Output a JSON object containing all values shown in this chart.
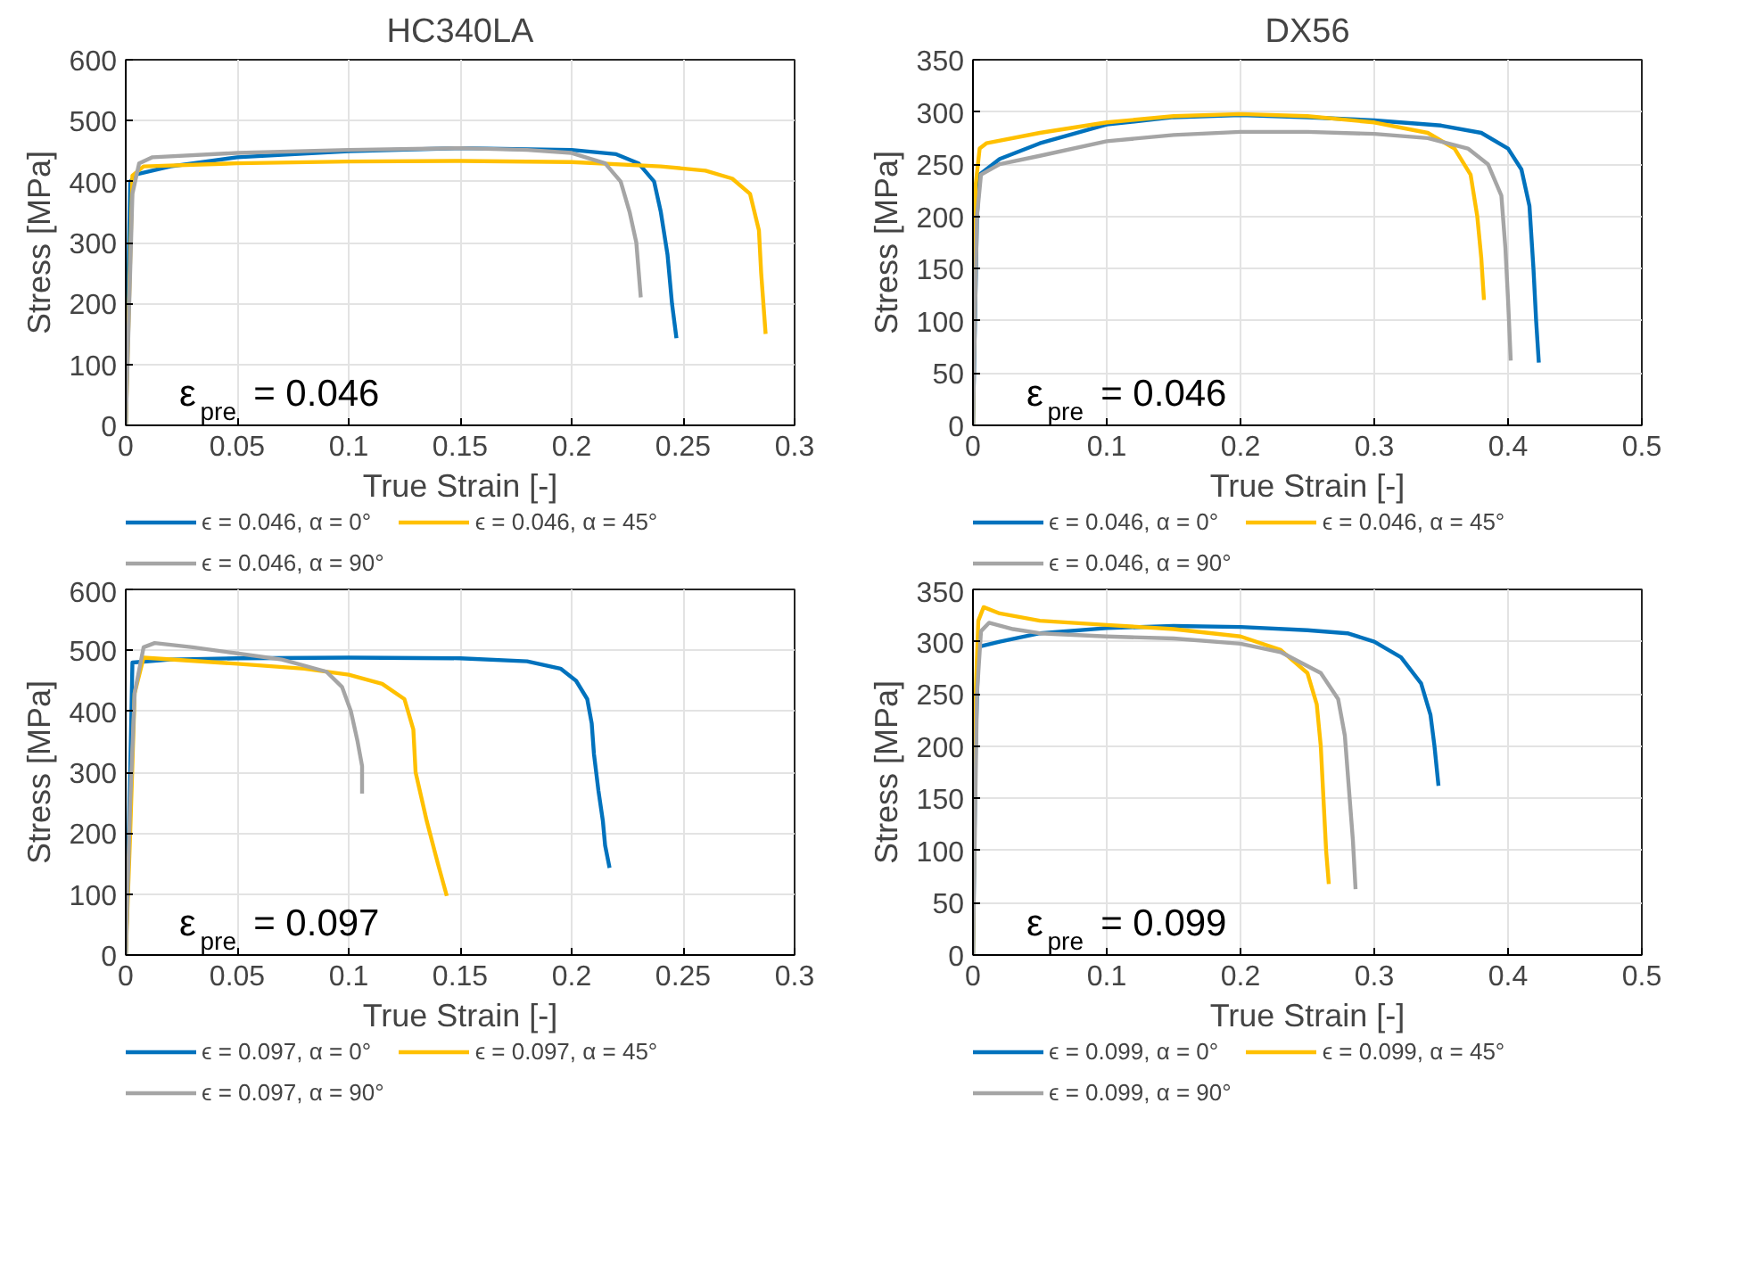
{
  "chart_data": [
    {
      "type": "line",
      "title": "HC340LA",
      "xlabel": "True Strain [-]",
      "ylabel": "Stress [MPa]",
      "annotations": [
        "ε$_{pre}$ = 0.046"
      ],
      "xlim": [
        0,
        0.3
      ],
      "ylim": [
        0,
        600
      ],
      "xticks": [
        0,
        0.05,
        0.1,
        0.15,
        0.2,
        0.25,
        0.3
      ],
      "yticks": [
        0,
        100,
        200,
        300,
        400,
        500,
        600
      ],
      "grid": true,
      "legend": "bottom",
      "line_style": "solid",
      "series": [
        {
          "name": "ϵ = 0.046, α = 0°",
          "color": "#0072bd",
          "x": [
            0,
            0.002,
            0.005,
            0.02,
            0.05,
            0.1,
            0.15,
            0.2,
            0.22,
            0.23,
            0.237,
            0.24,
            0.243,
            0.245,
            0.247
          ],
          "values": [
            0,
            400,
            412,
            425,
            440,
            450,
            455,
            452,
            445,
            430,
            400,
            350,
            280,
            200,
            143
          ]
        },
        {
          "name": "ϵ = 0.046, α = 45°",
          "color": "#ffc000",
          "x": [
            0,
            0.003,
            0.008,
            0.05,
            0.1,
            0.15,
            0.2,
            0.24,
            0.26,
            0.272,
            0.28,
            0.284,
            0.285,
            0.287
          ],
          "values": [
            0,
            410,
            425,
            430,
            433,
            434,
            432,
            425,
            418,
            405,
            380,
            320,
            250,
            150
          ]
        },
        {
          "name": "ϵ = 0.046, α = 90°",
          "color": "#a5a5a5",
          "x": [
            0,
            0.003,
            0.006,
            0.012,
            0.05,
            0.1,
            0.15,
            0.18,
            0.2,
            0.215,
            0.222,
            0.226,
            0.229,
            0.231
          ],
          "values": [
            0,
            380,
            430,
            440,
            447,
            452,
            455,
            452,
            447,
            430,
            400,
            350,
            300,
            210
          ]
        }
      ]
    },
    {
      "type": "line",
      "title": "DX56",
      "xlabel": "True Strain [-]",
      "ylabel": "Stress [MPa]",
      "annotations": [
        "ε$_{pre}$ = 0.046"
      ],
      "xlim": [
        0,
        0.5
      ],
      "ylim": [
        0,
        350
      ],
      "xticks": [
        0,
        0.1,
        0.2,
        0.3,
        0.4,
        0.5
      ],
      "yticks": [
        0,
        50,
        100,
        150,
        200,
        250,
        300,
        350
      ],
      "grid": true,
      "legend": "bottom",
      "line_style": "solid",
      "series": [
        {
          "name": "ϵ = 0.046, α = 0°",
          "color": "#0072bd",
          "x": [
            0,
            0.003,
            0.005,
            0.02,
            0.05,
            0.1,
            0.15,
            0.2,
            0.25,
            0.3,
            0.35,
            0.38,
            0.4,
            0.41,
            0.416,
            0.419,
            0.421,
            0.423
          ],
          "values": [
            0,
            200,
            240,
            255,
            270,
            288,
            295,
            297,
            295,
            292,
            287,
            280,
            265,
            245,
            210,
            150,
            100,
            60
          ]
        },
        {
          "name": "ϵ = 0.046, α = 45°",
          "color": "#ffc000",
          "x": [
            0,
            0.002,
            0.005,
            0.01,
            0.05,
            0.1,
            0.15,
            0.2,
            0.25,
            0.3,
            0.34,
            0.36,
            0.372,
            0.377,
            0.38,
            0.382
          ],
          "values": [
            0,
            230,
            265,
            270,
            280,
            290,
            296,
            298,
            296,
            290,
            280,
            265,
            240,
            200,
            160,
            120
          ]
        },
        {
          "name": "ϵ = 0.046, α = 90°",
          "color": "#a5a5a5",
          "x": [
            0,
            0.003,
            0.006,
            0.02,
            0.05,
            0.1,
            0.15,
            0.2,
            0.25,
            0.3,
            0.34,
            0.37,
            0.385,
            0.395,
            0.398,
            0.4,
            0.402
          ],
          "values": [
            0,
            200,
            240,
            250,
            258,
            272,
            278,
            281,
            281,
            279,
            275,
            265,
            250,
            220,
            170,
            120,
            62
          ]
        }
      ]
    },
    {
      "type": "line",
      "xlabel": "True Strain [-]",
      "ylabel": "Stress [MPa]",
      "annotations": [
        "ε$_{pre}$ = 0.097"
      ],
      "xlim": [
        0,
        0.3
      ],
      "ylim": [
        0,
        600
      ],
      "xticks": [
        0,
        0.05,
        0.1,
        0.15,
        0.2,
        0.25,
        0.3
      ],
      "yticks": [
        0,
        100,
        200,
        300,
        400,
        500,
        600
      ],
      "grid": true,
      "legend": "bottom",
      "line_style": "solid",
      "series": [
        {
          "name": "ϵ = 0.097, α = 0°",
          "color": "#0072bd",
          "x": [
            0,
            0.002,
            0.003,
            0.02,
            0.05,
            0.1,
            0.15,
            0.18,
            0.195,
            0.202,
            0.207,
            0.209,
            0.21,
            0.212,
            0.214,
            0.215,
            0.217
          ],
          "values": [
            0,
            300,
            480,
            485,
            487,
            488,
            487,
            482,
            470,
            450,
            420,
            380,
            330,
            270,
            220,
            180,
            143
          ]
        },
        {
          "name": "ϵ = 0.097, α = 45°",
          "color": "#ffc000",
          "x": [
            0,
            0.002,
            0.004,
            0.008,
            0.05,
            0.08,
            0.1,
            0.115,
            0.125,
            0.129,
            0.13,
            0.135,
            0.14,
            0.144
          ],
          "values": [
            0,
            200,
            430,
            488,
            478,
            470,
            460,
            445,
            420,
            370,
            300,
            220,
            150,
            97
          ]
        },
        {
          "name": "ϵ = 0.097, α = 90°",
          "color": "#a5a5a5",
          "x": [
            0,
            0.002,
            0.004,
            0.008,
            0.013,
            0.03,
            0.05,
            0.07,
            0.09,
            0.097,
            0.101,
            0.104,
            0.106,
            0.106
          ],
          "values": [
            0,
            250,
            430,
            505,
            512,
            505,
            495,
            485,
            465,
            440,
            400,
            350,
            310,
            265
          ]
        }
      ]
    },
    {
      "type": "line",
      "xlabel": "True Strain [-]",
      "ylabel": "Stress [MPa]",
      "annotations": [
        "ε$_{pre}$ = 0.099"
      ],
      "xlim": [
        0,
        0.5
      ],
      "ylim": [
        0,
        350
      ],
      "xticks": [
        0,
        0.1,
        0.2,
        0.3,
        0.4,
        0.5
      ],
      "yticks": [
        0,
        50,
        100,
        150,
        200,
        250,
        300,
        350
      ],
      "grid": true,
      "legend": "bottom",
      "line_style": "solid",
      "series": [
        {
          "name": "ϵ = 0.099, α = 0°",
          "color": "#0072bd",
          "x": [
            0,
            0.002,
            0.004,
            0.02,
            0.05,
            0.1,
            0.15,
            0.2,
            0.25,
            0.28,
            0.3,
            0.32,
            0.335,
            0.342,
            0.345,
            0.348
          ],
          "values": [
            0,
            200,
            295,
            300,
            308,
            313,
            315,
            314,
            311,
            308,
            300,
            285,
            260,
            230,
            200,
            162
          ]
        },
        {
          "name": "ϵ = 0.099, α = 45°",
          "color": "#ffc000",
          "x": [
            0,
            0.002,
            0.004,
            0.008,
            0.02,
            0.05,
            0.1,
            0.15,
            0.2,
            0.23,
            0.25,
            0.257,
            0.26,
            0.262,
            0.264,
            0.266
          ],
          "values": [
            0,
            250,
            320,
            333,
            327,
            320,
            316,
            312,
            305,
            292,
            270,
            240,
            200,
            150,
            100,
            68
          ]
        },
        {
          "name": "ϵ = 0.099, α = 90°",
          "color": "#a5a5a5",
          "x": [
            0,
            0.003,
            0.006,
            0.012,
            0.03,
            0.05,
            0.1,
            0.15,
            0.2,
            0.23,
            0.26,
            0.273,
            0.278,
            0.281,
            0.284,
            0.286
          ],
          "values": [
            0,
            250,
            310,
            318,
            312,
            308,
            305,
            303,
            298,
            290,
            270,
            245,
            210,
            160,
            110,
            63
          ]
        }
      ]
    }
  ]
}
